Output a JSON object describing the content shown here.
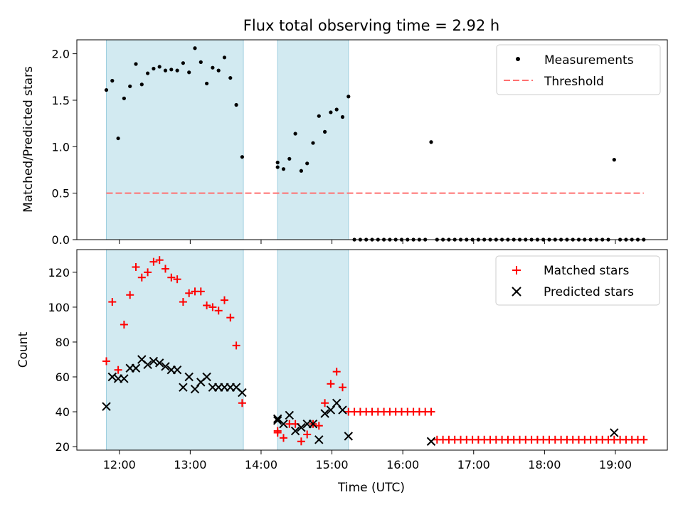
{
  "chart_data": [
    {
      "type": "scatter",
      "title": "Flux total observing time = 2.92 h",
      "xlabel": "",
      "ylabel": "Matched/Predicted stars",
      "ylim": [
        0,
        2.15
      ],
      "yticks": [
        "0.0",
        "0.5",
        "1.0",
        "1.5",
        "2.0"
      ],
      "grid": false,
      "legend_position": "top-right",
      "shaded_intervals": [
        [
          "11:49",
          "13:45"
        ],
        [
          "14:14",
          "15:14"
        ]
      ],
      "series": [
        {
          "name": "Measurements",
          "marker": "dot",
          "color": "#000000",
          "x": [
            "11:49",
            "11:54",
            "11:59",
            "12:04",
            "12:09",
            "12:14",
            "12:19",
            "12:24",
            "12:29",
            "12:34",
            "12:39",
            "12:44",
            "12:49",
            "12:54",
            "12:59",
            "13:04",
            "13:09",
            "13:14",
            "13:19",
            "13:24",
            "13:29",
            "13:34",
            "13:39",
            "13:44",
            "14:14",
            "14:14",
            "14:19",
            "14:24",
            "14:29",
            "14:34",
            "14:39",
            "14:44",
            "14:49",
            "14:54",
            "14:59",
            "15:04",
            "15:09",
            "15:14",
            "15:19",
            "15:24",
            "15:29",
            "15:34",
            "15:39",
            "15:44",
            "15:49",
            "15:54",
            "15:59",
            "16:04",
            "16:09",
            "16:14",
            "16:19",
            "16:24",
            "16:29",
            "16:34",
            "16:39",
            "16:44",
            "16:49",
            "16:54",
            "16:59",
            "17:04",
            "17:09",
            "17:14",
            "17:19",
            "17:24",
            "17:29",
            "17:34",
            "17:39",
            "17:44",
            "17:49",
            "17:54",
            "17:59",
            "18:04",
            "18:09",
            "18:14",
            "18:19",
            "18:24",
            "18:29",
            "18:34",
            "18:39",
            "18:44",
            "18:49",
            "18:54",
            "18:59",
            "19:04",
            "19:09",
            "19:14",
            "19:19",
            "19:24"
          ],
          "values": [
            1.61,
            1.71,
            1.09,
            1.52,
            1.65,
            1.89,
            1.67,
            1.79,
            1.84,
            1.86,
            1.82,
            1.83,
            1.82,
            1.9,
            1.8,
            2.06,
            1.91,
            1.68,
            1.85,
            1.82,
            1.96,
            1.74,
            1.45,
            0.89,
            0.83,
            0.78,
            0.76,
            0.87,
            1.14,
            0.74,
            0.82,
            1.04,
            1.33,
            1.16,
            1.37,
            1.4,
            1.32,
            1.54,
            0,
            0,
            0,
            0,
            0,
            0,
            0,
            0,
            0,
            0,
            0,
            0,
            0,
            1.05,
            0,
            0,
            0,
            0,
            0,
            0,
            0,
            0,
            0,
            0,
            0,
            0,
            0,
            0,
            0,
            0,
            0,
            0,
            0,
            0,
            0,
            0,
            0,
            0,
            0,
            0,
            0,
            0,
            0,
            0,
            0.86,
            0,
            0,
            0,
            0,
            0
          ]
        },
        {
          "name": "Threshold",
          "style": "dashed",
          "color": "#ff7070",
          "x": [
            "11:49",
            "19:24"
          ],
          "values": [
            0.5,
            0.5
          ]
        }
      ]
    },
    {
      "type": "scatter",
      "xlabel": "Time (UTC)",
      "ylabel": "Count",
      "ylim": [
        18,
        133
      ],
      "yticks": [
        "20",
        "40",
        "60",
        "80",
        "100",
        "120"
      ],
      "xticks": [
        "12:00",
        "13:00",
        "14:00",
        "15:00",
        "16:00",
        "17:00",
        "18:00",
        "19:00"
      ],
      "xlim": [
        "11:24",
        "19:44"
      ],
      "grid": false,
      "legend_position": "top-right",
      "shaded_intervals": [
        [
          "11:49",
          "13:45"
        ],
        [
          "14:14",
          "15:14"
        ]
      ],
      "series": [
        {
          "name": "Matched stars",
          "marker": "plus",
          "color": "#ff0000",
          "x": [
            "11:49",
            "11:54",
            "11:59",
            "12:04",
            "12:09",
            "12:14",
            "12:19",
            "12:24",
            "12:29",
            "12:34",
            "12:39",
            "12:44",
            "12:49",
            "12:54",
            "12:59",
            "13:04",
            "13:09",
            "13:14",
            "13:19",
            "13:24",
            "13:29",
            "13:34",
            "13:39",
            "13:44",
            "14:14",
            "14:14",
            "14:19",
            "14:24",
            "14:29",
            "14:34",
            "14:39",
            "14:44",
            "14:49",
            "14:54",
            "14:59",
            "15:04",
            "15:09",
            "15:14",
            "15:19",
            "15:24",
            "15:29",
            "15:34",
            "15:39",
            "15:44",
            "15:49",
            "15:54",
            "15:59",
            "16:04",
            "16:09",
            "16:14",
            "16:19",
            "16:24",
            "16:29",
            "16:34",
            "16:39",
            "16:44",
            "16:49",
            "16:54",
            "16:59",
            "17:04",
            "17:09",
            "17:14",
            "17:19",
            "17:24",
            "17:29",
            "17:34",
            "17:39",
            "17:44",
            "17:49",
            "17:54",
            "17:59",
            "18:04",
            "18:09",
            "18:14",
            "18:19",
            "18:24",
            "18:29",
            "18:34",
            "18:39",
            "18:44",
            "18:49",
            "18:54",
            "18:59",
            "19:04",
            "19:09",
            "19:14",
            "19:19",
            "19:24"
          ],
          "values": [
            69,
            103,
            64,
            90,
            107,
            123,
            117,
            120,
            126,
            127,
            122,
            117,
            116,
            103,
            108,
            109,
            109,
            101,
            100,
            98,
            104,
            94,
            78,
            45,
            29,
            28,
            25,
            33,
            33,
            23,
            27,
            33,
            32,
            45,
            56,
            63,
            54,
            40,
            40,
            40,
            40,
            40,
            40,
            40,
            40,
            40,
            40,
            40,
            40,
            40,
            40,
            40,
            24,
            24,
            24,
            24,
            24,
            24,
            24,
            24,
            24,
            24,
            24,
            24,
            24,
            24,
            24,
            24,
            24,
            24,
            24,
            24,
            24,
            24,
            24,
            24,
            24,
            24,
            24,
            24,
            24,
            24,
            24,
            24,
            24,
            24,
            24,
            24
          ]
        },
        {
          "name": "Predicted stars",
          "marker": "x",
          "color": "#000000",
          "x": [
            "11:49",
            "11:54",
            "11:59",
            "12:04",
            "12:09",
            "12:14",
            "12:19",
            "12:24",
            "12:29",
            "12:34",
            "12:39",
            "12:44",
            "12:49",
            "12:54",
            "12:59",
            "13:04",
            "13:09",
            "13:14",
            "13:19",
            "13:24",
            "13:29",
            "13:34",
            "13:39",
            "13:44",
            "14:14",
            "14:14",
            "14:19",
            "14:24",
            "14:29",
            "14:34",
            "14:39",
            "14:44",
            "14:49",
            "14:54",
            "14:59",
            "15:04",
            "15:09",
            "15:14",
            "16:24",
            "18:59"
          ],
          "values": [
            43,
            60,
            59,
            59,
            65,
            65,
            70,
            67,
            69,
            68,
            66,
            64,
            64,
            54,
            60,
            53,
            57,
            60,
            54,
            54,
            54,
            54,
            54,
            51,
            36,
            35,
            33,
            38,
            29,
            31,
            33,
            33,
            24,
            39,
            41,
            45,
            41,
            26,
            23,
            28
          ]
        }
      ]
    }
  ]
}
